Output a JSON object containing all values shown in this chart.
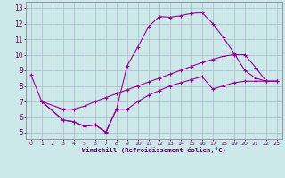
{
  "background_color": "#cce8e8",
  "grid_color": "#aabbcc",
  "line_color": "#990099",
  "xlabel": "Windchill (Refroidissement éolien,°C)",
  "xlim": [
    -0.5,
    23.5
  ],
  "ylim": [
    4.6,
    13.4
  ],
  "ytick_vals": [
    5,
    6,
    7,
    8,
    9,
    10,
    11,
    12,
    13
  ],
  "xtick_vals": [
    0,
    1,
    2,
    3,
    4,
    5,
    6,
    7,
    8,
    9,
    10,
    11,
    12,
    13,
    14,
    15,
    16,
    17,
    18,
    19,
    20,
    21,
    22,
    23
  ],
  "line1_x": [
    0,
    1,
    3,
    4,
    5,
    6,
    7,
    8,
    9,
    10,
    11,
    12,
    13,
    14,
    15,
    16,
    17,
    18,
    19,
    20,
    21,
    22,
    23
  ],
  "line1_y": [
    8.7,
    7.0,
    5.8,
    5.7,
    5.4,
    5.5,
    5.0,
    6.5,
    9.3,
    10.5,
    11.8,
    12.45,
    12.4,
    12.5,
    12.65,
    12.7,
    12.0,
    11.1,
    10.1,
    9.0,
    8.5,
    8.3,
    8.3
  ],
  "line2_x": [
    1,
    3,
    4,
    5,
    6,
    7,
    8,
    9,
    10,
    11,
    12,
    13,
    14,
    15,
    16,
    17,
    18,
    19,
    20,
    21,
    22,
    23
  ],
  "line2_y": [
    7.0,
    6.5,
    6.5,
    6.7,
    7.0,
    7.25,
    7.5,
    7.75,
    8.0,
    8.25,
    8.5,
    8.75,
    9.0,
    9.25,
    9.5,
    9.7,
    9.9,
    10.0,
    10.0,
    9.2,
    8.3,
    8.3
  ],
  "line3_x": [
    1,
    3,
    4,
    5,
    6,
    7,
    8,
    9,
    10,
    11,
    12,
    13,
    14,
    15,
    16,
    17,
    18,
    19,
    20,
    21,
    22,
    23
  ],
  "line3_y": [
    7.0,
    5.8,
    5.7,
    5.4,
    5.5,
    5.05,
    6.5,
    6.5,
    7.0,
    7.4,
    7.7,
    8.0,
    8.2,
    8.4,
    8.6,
    7.8,
    8.0,
    8.2,
    8.3,
    8.3,
    8.3,
    8.3
  ]
}
